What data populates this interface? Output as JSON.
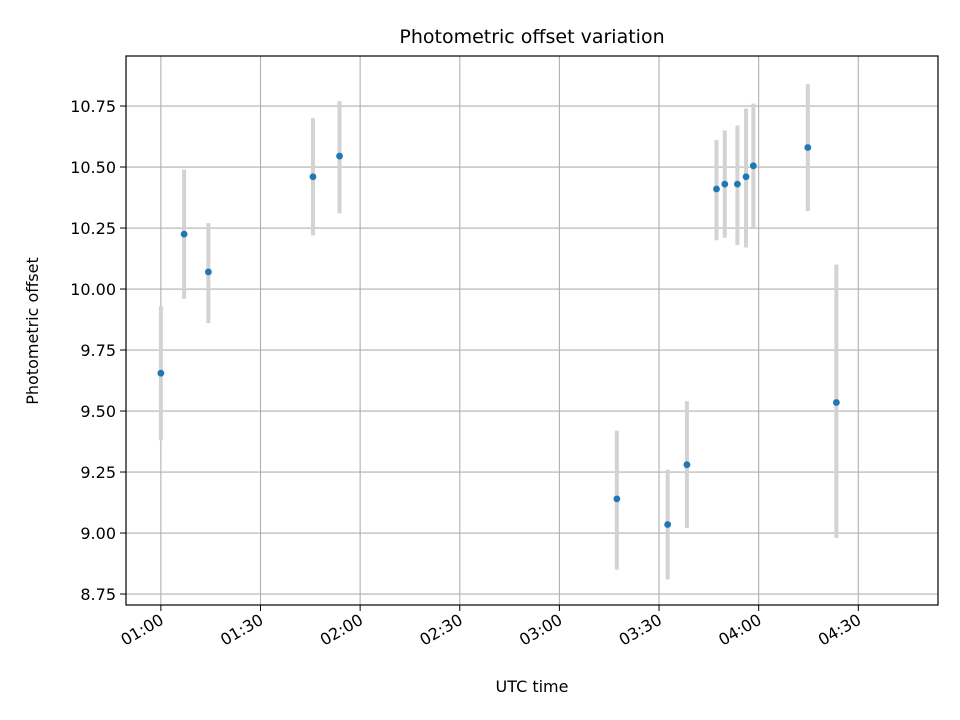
{
  "chart_data": {
    "type": "scatter",
    "title": "Photometric offset variation",
    "xlabel": "UTC time",
    "ylabel": "Photometric offset",
    "grid": true,
    "x_unit": "minutes",
    "xlim": [
      49.5,
      294
    ],
    "ylim": [
      8.705,
      10.955
    ],
    "x_ticks": [
      {
        "label": "01:00",
        "value": 60
      },
      {
        "label": "01:30",
        "value": 90
      },
      {
        "label": "02:00",
        "value": 120
      },
      {
        "label": "02:30",
        "value": 150
      },
      {
        "label": "03:00",
        "value": 180
      },
      {
        "label": "03:30",
        "value": 210
      },
      {
        "label": "04:00",
        "value": 240
      },
      {
        "label": "04:30",
        "value": 270
      }
    ],
    "y_ticks": [
      {
        "label": "8.75",
        "value": 8.75
      },
      {
        "label": "9.00",
        "value": 9.0
      },
      {
        "label": "9.25",
        "value": 9.25
      },
      {
        "label": "9.50",
        "value": 9.5
      },
      {
        "label": "9.75",
        "value": 9.75
      },
      {
        "label": "10.00",
        "value": 10.0
      },
      {
        "label": "10.25",
        "value": 10.25
      },
      {
        "label": "10.50",
        "value": 10.5
      },
      {
        "label": "10.75",
        "value": 10.75
      }
    ],
    "marker_color": "#1f77b4",
    "errorbar_color": "#d3d3d3",
    "points": [
      {
        "time": "01:00",
        "x": 60.0,
        "y": 9.655,
        "ylow": 9.38,
        "yhigh": 9.93
      },
      {
        "time": "01:07",
        "x": 67.0,
        "y": 10.225,
        "ylow": 9.96,
        "yhigh": 10.49
      },
      {
        "time": "01:14",
        "x": 74.3,
        "y": 10.07,
        "ylow": 9.86,
        "yhigh": 10.27
      },
      {
        "time": "01:46",
        "x": 105.8,
        "y": 10.46,
        "ylow": 10.22,
        "yhigh": 10.7
      },
      {
        "time": "01:54",
        "x": 113.8,
        "y": 10.545,
        "ylow": 10.31,
        "yhigh": 10.77
      },
      {
        "time": "03:17",
        "x": 197.3,
        "y": 9.14,
        "ylow": 8.85,
        "yhigh": 9.42
      },
      {
        "time": "03:33",
        "x": 212.6,
        "y": 9.035,
        "ylow": 8.81,
        "yhigh": 9.26
      },
      {
        "time": "03:38",
        "x": 218.4,
        "y": 9.28,
        "ylow": 9.02,
        "yhigh": 9.54
      },
      {
        "time": "03:47",
        "x": 227.3,
        "y": 10.41,
        "ylow": 10.2,
        "yhigh": 10.61
      },
      {
        "time": "03:49",
        "x": 229.8,
        "y": 10.43,
        "ylow": 10.21,
        "yhigh": 10.65
      },
      {
        "time": "03:53",
        "x": 233.6,
        "y": 10.43,
        "ylow": 10.18,
        "yhigh": 10.67
      },
      {
        "time": "03:56",
        "x": 236.2,
        "y": 10.46,
        "ylow": 10.17,
        "yhigh": 10.74
      },
      {
        "time": "03:58",
        "x": 238.4,
        "y": 10.505,
        "ylow": 10.25,
        "yhigh": 10.76
      },
      {
        "time": "04:15",
        "x": 254.8,
        "y": 10.58,
        "ylow": 10.32,
        "yhigh": 10.84
      },
      {
        "time": "04:23",
        "x": 263.4,
        "y": 9.535,
        "ylow": 8.98,
        "yhigh": 10.1
      }
    ]
  }
}
